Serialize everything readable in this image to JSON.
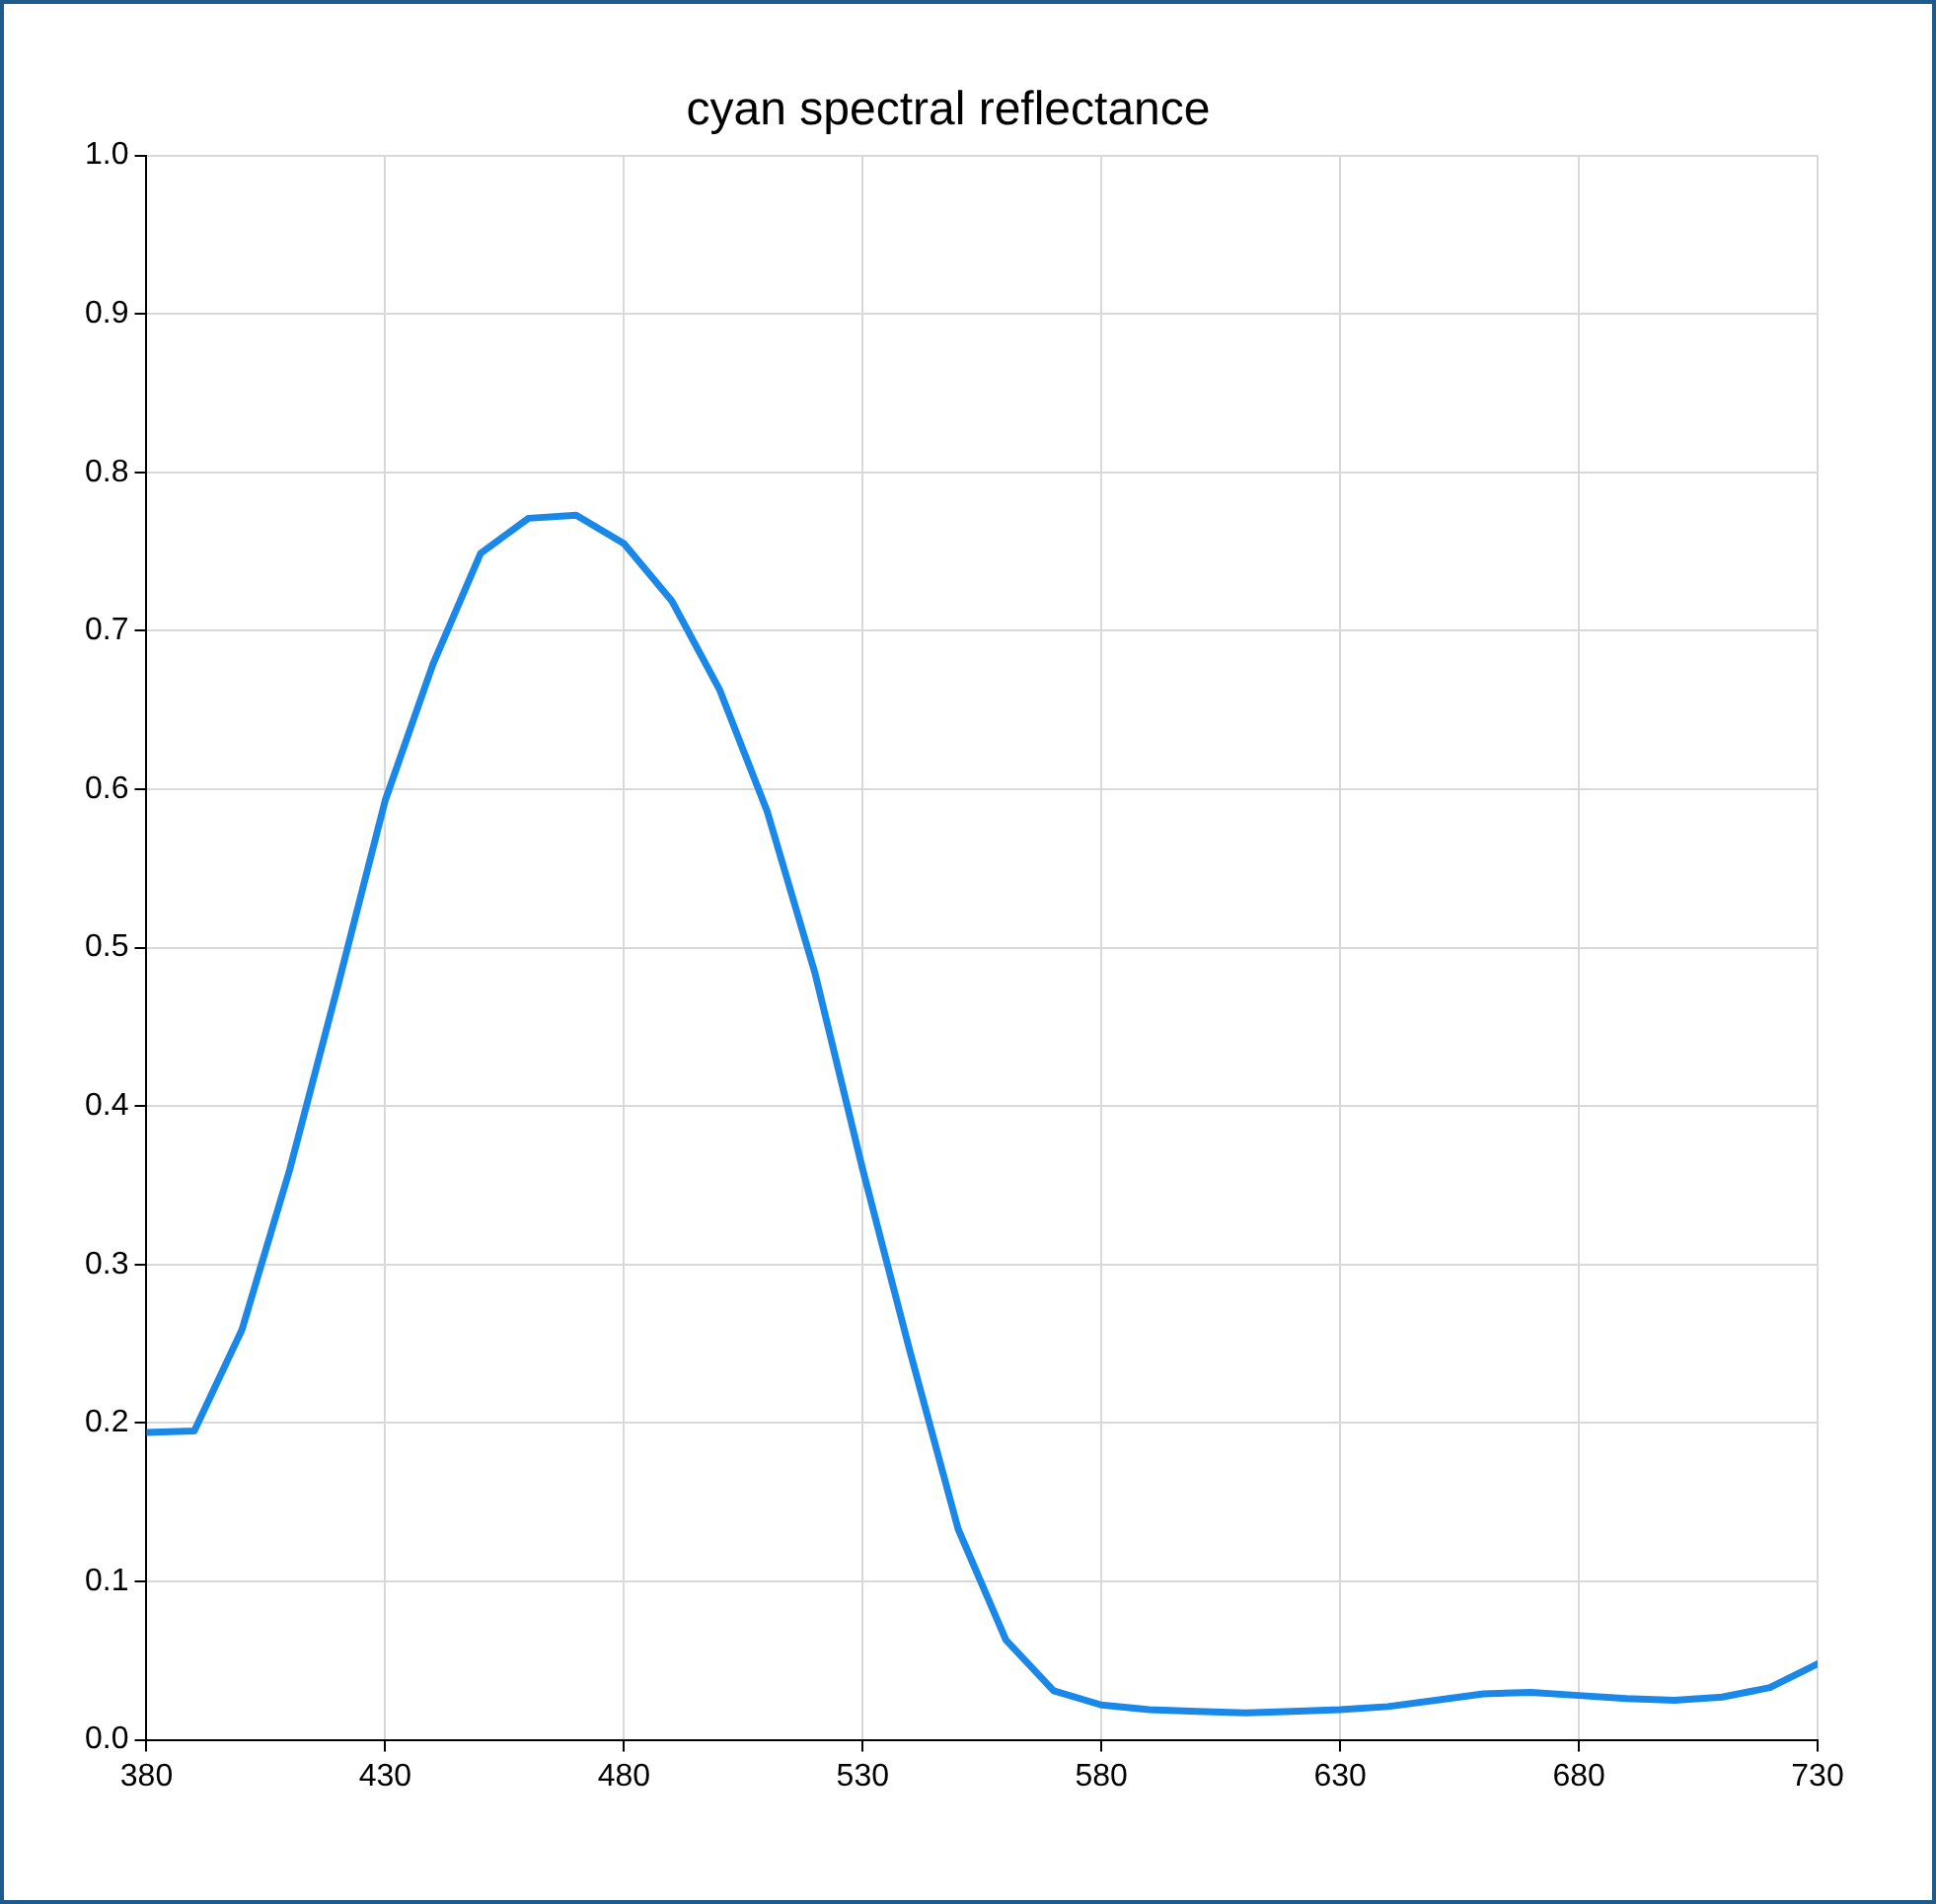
{
  "chart_data": {
    "type": "line",
    "title": "cyan spectral reflectance",
    "x": [
      380,
      390,
      400,
      410,
      420,
      430,
      440,
      450,
      460,
      470,
      480,
      490,
      500,
      510,
      520,
      530,
      540,
      550,
      560,
      570,
      580,
      590,
      600,
      610,
      620,
      630,
      640,
      650,
      660,
      670,
      680,
      690,
      700,
      710,
      720,
      730
    ],
    "series": [
      {
        "color": "#1a88e8",
        "values": [
          0.194,
          0.195,
          0.259,
          0.36,
          0.475,
          0.593,
          0.679,
          0.749,
          0.771,
          0.773,
          0.755,
          0.719,
          0.663,
          0.586,
          0.484,
          0.36,
          0.244,
          0.133,
          0.063,
          0.031,
          0.022,
          0.019,
          0.018,
          0.017,
          0.018,
          0.019,
          0.021,
          0.025,
          0.029,
          0.03,
          0.028,
          0.026,
          0.025,
          0.027,
          0.033,
          0.048
        ]
      }
    ],
    "xlim": [
      380,
      730
    ],
    "xticks": [
      380,
      430,
      480,
      530,
      580,
      630,
      680,
      730
    ],
    "ylim": [
      0,
      1
    ],
    "yticks": [
      {
        "value": 0,
        "label": "0.0"
      },
      0.1,
      0.2,
      0.3,
      0.4,
      0.5,
      0.6,
      0.7,
      0.8,
      0.9,
      {
        "value": 1,
        "label": "1.0"
      }
    ],
    "grid": true,
    "legend": false,
    "marker": "none",
    "line_style": "solid"
  }
}
